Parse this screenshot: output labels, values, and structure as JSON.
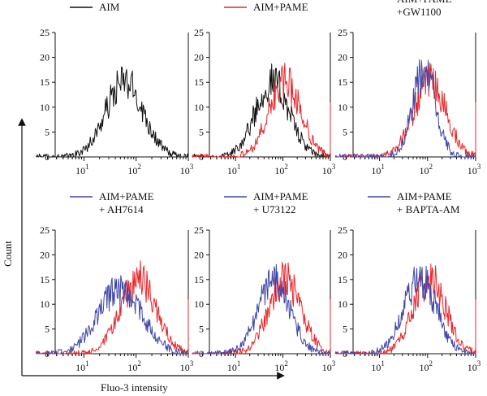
{
  "figure": {
    "ylabel": "Count",
    "xlabel": "Fluo-3 intensity"
  },
  "colors": {
    "black": "#111111",
    "red": "#e8262a",
    "blue": "#3f47a8"
  },
  "chart_data": [
    {
      "type": "line",
      "legend": [
        "AIM"
      ],
      "xscale": "log",
      "xlim": [
        10,
        1000
      ],
      "ylim": [
        0,
        25
      ],
      "yticks": [
        "0",
        "5",
        "10",
        "15",
        "20",
        "25"
      ],
      "xticks": [
        {
          "base": "10",
          "exp": "1"
        },
        {
          "base": "10",
          "exp": "2"
        },
        {
          "base": "10",
          "exp": "3"
        }
      ],
      "series": [
        {
          "name": "AIM",
          "color": "black",
          "peak_x": 60,
          "peak_y": 15,
          "width": 0.36,
          "xmin": 1.2,
          "tail_y": 20
        }
      ]
    },
    {
      "type": "line",
      "legend": [
        "AIM+PAME"
      ],
      "xscale": "log",
      "xlim": [
        10,
        1000
      ],
      "ylim": [
        0,
        25
      ],
      "yticks": [
        "0",
        "5",
        "10",
        "15",
        "20",
        "25"
      ],
      "xticks": [
        {
          "base": "10",
          "exp": "1"
        },
        {
          "base": "10",
          "exp": "2"
        },
        {
          "base": "10",
          "exp": "3"
        }
      ],
      "series": [
        {
          "name": "AIM",
          "color": "black",
          "peak_x": 60,
          "peak_y": 15,
          "width": 0.36,
          "xmin": 1.2
        },
        {
          "name": "AIM+PAME",
          "color": "red",
          "peak_x": 110,
          "peak_y": 15,
          "width": 0.34,
          "xmin": 1.2,
          "tail_y": 11
        }
      ]
    },
    {
      "type": "line",
      "legend": [
        "AIM+PAME",
        "+GW1100"
      ],
      "xscale": "log",
      "xlim": [
        10,
        1000
      ],
      "ylim": [
        0,
        25
      ],
      "yticks": [
        "0",
        "5",
        "10",
        "15",
        "20",
        "25"
      ],
      "xticks": [
        {
          "base": "10",
          "exp": "1"
        },
        {
          "base": "10",
          "exp": "2"
        },
        {
          "base": "10",
          "exp": "3"
        }
      ],
      "series": [
        {
          "name": "AIM+PAME",
          "color": "red",
          "peak_x": 110,
          "peak_y": 15,
          "width": 0.34,
          "xmin": 1.2,
          "tail_y": 11
        },
        {
          "name": "AIM+PAME+GW1100",
          "color": "blue",
          "peak_x": 85,
          "peak_y": 17,
          "width": 0.24,
          "xmin": 1.2
        }
      ]
    },
    {
      "type": "line",
      "legend": [
        "AIM+PAME",
        "+ AH7614"
      ],
      "xscale": "log",
      "xlim": [
        10,
        1000
      ],
      "ylim": [
        0,
        25
      ],
      "yticks": [
        "0",
        "5",
        "10",
        "15",
        "20",
        "25"
      ],
      "xticks": [
        {
          "base": "10",
          "exp": "1"
        },
        {
          "base": "10",
          "exp": "2"
        },
        {
          "base": "10",
          "exp": "3"
        }
      ],
      "series": [
        {
          "name": "AIM+PAME",
          "color": "red",
          "peak_x": 110,
          "peak_y": 15,
          "width": 0.34,
          "xmin": 1.2,
          "tail_y": 11
        },
        {
          "name": "AIM+PAME+AH7614",
          "color": "blue",
          "peak_x": 50,
          "peak_y": 13,
          "width": 0.42,
          "xmin": 1.2
        }
      ]
    },
    {
      "type": "line",
      "legend": [
        "AIM+PAME",
        "+ U73122"
      ],
      "xscale": "log",
      "xlim": [
        10,
        1000
      ],
      "ylim": [
        0,
        25
      ],
      "yticks": [
        "0",
        "5",
        "10",
        "15",
        "20",
        "25"
      ],
      "xticks": [
        {
          "base": "10",
          "exp": "1"
        },
        {
          "base": "10",
          "exp": "2"
        },
        {
          "base": "10",
          "exp": "3"
        }
      ],
      "series": [
        {
          "name": "AIM+PAME",
          "color": "red",
          "peak_x": 110,
          "peak_y": 15,
          "width": 0.34,
          "xmin": 1.2,
          "tail_y": 11
        },
        {
          "name": "AIM+PAME+U73122",
          "color": "blue",
          "peak_x": 65,
          "peak_y": 15,
          "width": 0.34,
          "xmin": 1.2
        }
      ]
    },
    {
      "type": "line",
      "legend": [
        "AIM+PAME",
        "+ BAPTA-AM"
      ],
      "xscale": "log",
      "xlim": [
        10,
        1000
      ],
      "ylim": [
        0,
        25
      ],
      "yticks": [
        "0",
        "5",
        "10",
        "15",
        "20",
        "25"
      ],
      "xticks": [
        {
          "base": "10",
          "exp": "1"
        },
        {
          "base": "10",
          "exp": "2"
        },
        {
          "base": "10",
          "exp": "3"
        }
      ],
      "series": [
        {
          "name": "AIM+PAME",
          "color": "red",
          "peak_x": 110,
          "peak_y": 15,
          "width": 0.34,
          "xmin": 1.2,
          "tail_y": 11
        },
        {
          "name": "AIM+PAME+BAPTA-AM",
          "color": "blue",
          "peak_x": 70,
          "peak_y": 15,
          "width": 0.34,
          "xmin": 1.2
        }
      ]
    }
  ]
}
